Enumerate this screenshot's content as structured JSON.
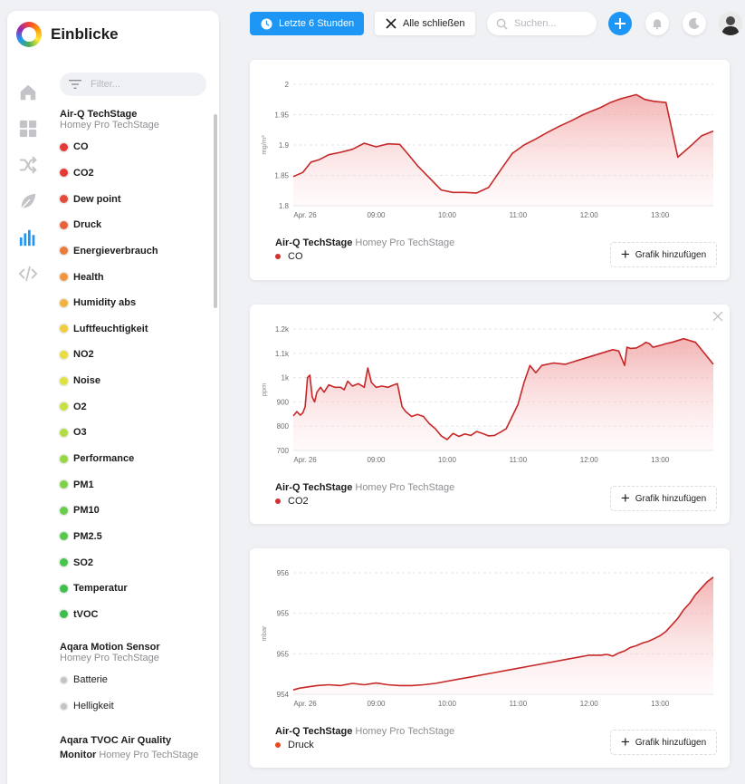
{
  "app": {
    "title": "Einblicke"
  },
  "filter": {
    "placeholder": "Filter..."
  },
  "groups": [
    {
      "device": "Air-Q TechStage",
      "zone": "Homey Pro TechStage",
      "items": [
        {
          "label": "CO",
          "color": "#e53935"
        },
        {
          "label": "CO2",
          "color": "#e53935"
        },
        {
          "label": "Dew point",
          "color": "#e5493a"
        },
        {
          "label": "Druck",
          "color": "#e8613a"
        },
        {
          "label": "Energieverbrauch",
          "color": "#ec7a3d"
        },
        {
          "label": "Health",
          "color": "#f0963e"
        },
        {
          "label": "Humidity abs",
          "color": "#f2b23f"
        },
        {
          "label": "Luftfeuchtigkeit",
          "color": "#f0cd3f"
        },
        {
          "label": "NO2",
          "color": "#e9dc3f"
        },
        {
          "label": "Noise",
          "color": "#dde23f"
        },
        {
          "label": "O2",
          "color": "#c9e03f"
        },
        {
          "label": "O3",
          "color": "#b2dc41"
        },
        {
          "label": "Performance",
          "color": "#98d744"
        },
        {
          "label": "PM1",
          "color": "#7fd247"
        },
        {
          "label": "PM10",
          "color": "#68cd4a"
        },
        {
          "label": "PM2.5",
          "color": "#55c84b"
        },
        {
          "label": "SO2",
          "color": "#47c44c"
        },
        {
          "label": "Temperatur",
          "color": "#3fc04d"
        },
        {
          "label": "tVOC",
          "color": "#3dbd4d"
        }
      ]
    },
    {
      "device": "Aqara Motion Sensor",
      "zone": "Homey Pro TechStage",
      "items": [
        {
          "label": "Batterie"
        },
        {
          "label": "Helligkeit"
        }
      ]
    },
    {
      "device_line1": "Aqara TVOC Air Quality",
      "device_line2": "Monitor",
      "zone": "Homey Pro TechStage"
    }
  ],
  "topbar": {
    "time_label": "Letzte 6 Stunden",
    "close_all_label": "Alle schließen",
    "search_placeholder": "Suchen..."
  },
  "cards": [
    {
      "device": "Air-Q TechStage",
      "zone": "Homey Pro TechStage",
      "capability": "CO",
      "capability_color": "#d32f2f",
      "add_label": "Grafik hinzufügen",
      "closable": false,
      "chart_data": {
        "type": "area",
        "ylabel": "mg/m³",
        "y_ticks": [
          "1.8",
          "1.85",
          "1.9",
          "1.95",
          "2"
        ],
        "ylim": [
          1.8,
          2.0
        ],
        "x_ticks": [
          "Apr. 26",
          "09:00",
          "10:00",
          "11:00",
          "12:00",
          "13:00"
        ],
        "x_tick_minutes": [
          480,
          540,
          600,
          660,
          720,
          780
        ],
        "xlim": [
          470,
          825
        ],
        "grid": true,
        "line_color": "#c62828",
        "x": [
          470,
          478,
          485,
          492,
          500,
          510,
          520,
          530,
          540,
          550,
          560,
          567,
          575,
          585,
          595,
          605,
          615,
          625,
          635,
          645,
          655,
          665,
          675,
          685,
          695,
          705,
          715,
          720,
          725,
          730,
          738,
          745,
          752,
          760,
          767,
          775,
          785,
          795,
          805,
          815,
          825
        ],
        "y": [
          1.848,
          1.855,
          1.872,
          1.876,
          1.884,
          1.888,
          1.893,
          1.903,
          1.897,
          1.902,
          1.901,
          1.885,
          1.866,
          1.846,
          1.826,
          1.822,
          1.822,
          1.821,
          1.83,
          1.858,
          1.886,
          1.9,
          1.91,
          1.921,
          1.931,
          1.94,
          1.95,
          1.954,
          1.958,
          1.962,
          1.97,
          1.975,
          1.979,
          1.983,
          1.975,
          1.972,
          1.97,
          1.88,
          1.897,
          1.915,
          1.923
        ]
      }
    },
    {
      "device": "Air-Q TechStage",
      "zone": "Homey Pro TechStage",
      "capability": "CO2",
      "capability_color": "#d32f2f",
      "add_label": "Grafik hinzufügen",
      "closable": true,
      "chart_data": {
        "type": "area",
        "ylabel": "ppm",
        "y_ticks": [
          "700",
          "800",
          "900",
          "1k",
          "1.1k",
          "1.2k"
        ],
        "ylim": [
          700,
          1200
        ],
        "x_ticks": [
          "Apr. 26",
          "09:00",
          "10:00",
          "11:00",
          "12:00",
          "13:00"
        ],
        "x_tick_minutes": [
          480,
          540,
          600,
          660,
          720,
          780
        ],
        "xlim": [
          470,
          825
        ],
        "grid": true,
        "line_color": "#c62828",
        "x": [
          470,
          473,
          476,
          478,
          480,
          482,
          484,
          486,
          488,
          490,
          493,
          496,
          500,
          505,
          510,
          513,
          516,
          520,
          525,
          530,
          533,
          536,
          540,
          545,
          550,
          555,
          558,
          562,
          565,
          570,
          575,
          580,
          585,
          590,
          595,
          600,
          605,
          610,
          615,
          620,
          625,
          630,
          635,
          640,
          645,
          650,
          655,
          660,
          665,
          670,
          675,
          680,
          690,
          700,
          710,
          720,
          730,
          740,
          745,
          750,
          752,
          755,
          760,
          765,
          768,
          771,
          774,
          778,
          782,
          785,
          790,
          800,
          810,
          825
        ],
        "y": [
          842,
          860,
          845,
          855,
          880,
          1000,
          1010,
          920,
          900,
          940,
          960,
          940,
          970,
          960,
          960,
          950,
          985,
          965,
          975,
          960,
          1040,
          980,
          960,
          965,
          960,
          970,
          975,
          880,
          860,
          840,
          848,
          840,
          810,
          790,
          760,
          745,
          770,
          758,
          768,
          762,
          778,
          770,
          760,
          762,
          775,
          790,
          840,
          890,
          980,
          1050,
          1020,
          1050,
          1060,
          1055,
          1070,
          1085,
          1100,
          1115,
          1110,
          1050,
          1125,
          1120,
          1122,
          1135,
          1145,
          1140,
          1125,
          1130,
          1135,
          1140,
          1145,
          1160,
          1145,
          1055
        ]
      }
    },
    {
      "device": "Air-Q TechStage",
      "zone": "Homey Pro TechStage",
      "capability": "Druck",
      "capability_color": "#e64a19",
      "add_label": "Grafik hinzufügen",
      "closable": false,
      "chart_data": {
        "type": "area",
        "ylabel": "mbar",
        "y_ticks": [
          "954",
          "955",
          "955",
          "956"
        ],
        "ylim": [
          953.6,
          956.4
        ],
        "x_ticks": [
          "Apr. 26",
          "09:00",
          "10:00",
          "11:00",
          "12:00",
          "13:00"
        ],
        "x_tick_minutes": [
          480,
          540,
          600,
          660,
          720,
          780
        ],
        "xlim": [
          470,
          825
        ],
        "grid": true,
        "line_color": "#c62828",
        "x": [
          470,
          475,
          480,
          490,
          500,
          510,
          520,
          530,
          540,
          550,
          560,
          570,
          580,
          590,
          600,
          610,
          620,
          630,
          640,
          650,
          660,
          670,
          680,
          690,
          700,
          710,
          720,
          730,
          735,
          740,
          745,
          750,
          755,
          760,
          765,
          770,
          775,
          780,
          785,
          790,
          795,
          800,
          805,
          810,
          815,
          820,
          825
        ],
        "y": [
          953.7,
          953.74,
          953.76,
          953.8,
          953.82,
          953.8,
          953.85,
          953.82,
          953.86,
          953.82,
          953.8,
          953.8,
          953.82,
          953.85,
          953.9,
          953.95,
          954.0,
          954.05,
          954.1,
          954.15,
          954.2,
          954.25,
          954.3,
          954.35,
          954.4,
          954.45,
          954.5,
          954.5,
          954.52,
          954.48,
          954.55,
          954.6,
          954.68,
          954.72,
          954.78,
          954.82,
          954.88,
          954.95,
          955.05,
          955.2,
          955.35,
          955.55,
          955.7,
          955.9,
          956.05,
          956.2,
          956.3
        ]
      }
    }
  ]
}
